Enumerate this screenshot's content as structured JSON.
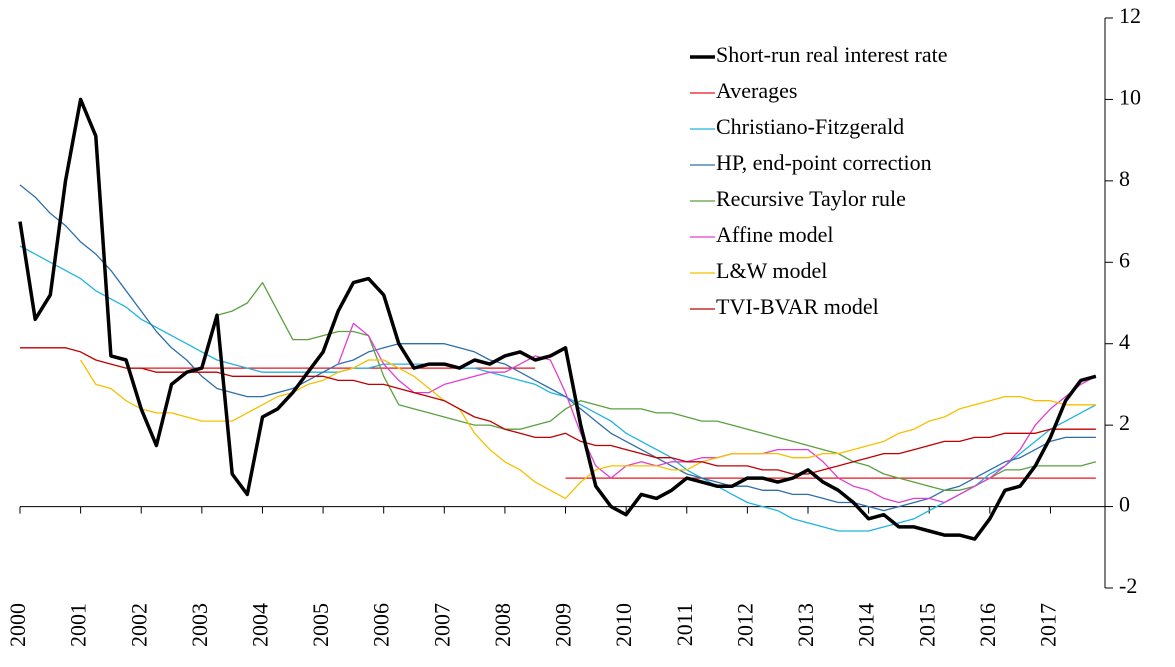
{
  "chart_data": {
    "type": "line",
    "x": [
      2000,
      2000.25,
      2000.5,
      2000.75,
      2001,
      2001.25,
      2001.5,
      2001.75,
      2002,
      2002.25,
      2002.5,
      2002.75,
      2003,
      2003.25,
      2003.5,
      2003.75,
      2004,
      2004.25,
      2004.5,
      2004.75,
      2005,
      2005.25,
      2005.5,
      2005.75,
      2006,
      2006.25,
      2006.5,
      2006.75,
      2007,
      2007.25,
      2007.5,
      2007.75,
      2008,
      2008.25,
      2008.5,
      2008.75,
      2009,
      2009.25,
      2009.5,
      2009.75,
      2010,
      2010.25,
      2010.5,
      2010.75,
      2011,
      2011.25,
      2011.5,
      2011.75,
      2012,
      2012.25,
      2012.5,
      2012.75,
      2013,
      2013.25,
      2013.5,
      2013.75,
      2014,
      2014.25,
      2014.5,
      2014.75,
      2015,
      2015.25,
      2015.5,
      2015.75,
      2016,
      2016.25,
      2016.5,
      2016.75,
      2017,
      2017.25,
      2017.5,
      2017.75
    ],
    "xlim": [
      2000,
      2017.9
    ],
    "xticks": [
      2000,
      2001,
      2002,
      2003,
      2004,
      2005,
      2006,
      2007,
      2008,
      2009,
      2010,
      2011,
      2012,
      2013,
      2014,
      2015,
      2016,
      2017
    ],
    "ylim": [
      -2,
      12
    ],
    "yticks": [
      -2,
      0,
      2,
      4,
      6,
      8,
      10,
      12
    ],
    "legend": "upper right",
    "series": [
      {
        "name": "Short-run real interest rate",
        "color": "#000000",
        "values": [
          7.0,
          4.6,
          5.2,
          8.0,
          10.0,
          9.1,
          3.7,
          3.6,
          2.4,
          1.5,
          3.0,
          3.3,
          3.4,
          4.7,
          0.8,
          0.3,
          2.2,
          2.4,
          2.8,
          3.3,
          3.8,
          4.8,
          5.5,
          5.6,
          5.2,
          4.0,
          3.4,
          3.5,
          3.5,
          3.4,
          3.6,
          3.5,
          3.7,
          3.8,
          3.6,
          3.7,
          3.9,
          2.0,
          0.5,
          0.0,
          -0.2,
          0.3,
          0.2,
          0.4,
          0.7,
          0.6,
          0.5,
          0.5,
          0.7,
          0.7,
          0.6,
          0.7,
          0.9,
          0.6,
          0.4,
          0.1,
          -0.3,
          -0.2,
          -0.5,
          -0.5,
          -0.6,
          -0.7,
          -0.7,
          -0.8,
          -0.3,
          0.4,
          0.5,
          1.0,
          1.7,
          2.6,
          3.1,
          3.2
        ]
      },
      {
        "name": "Averages",
        "color": "#e8141c",
        "values": [
          null,
          null,
          null,
          null,
          null,
          null,
          null,
          3.4,
          3.4,
          3.4,
          3.4,
          3.4,
          3.4,
          3.4,
          3.4,
          3.4,
          3.4,
          3.4,
          3.4,
          3.4,
          3.4,
          3.4,
          3.4,
          3.4,
          3.4,
          3.4,
          3.4,
          3.4,
          3.4,
          3.4,
          3.4,
          3.4,
          3.4,
          3.4,
          3.4,
          null,
          0.7,
          0.7,
          0.7,
          0.7,
          0.7,
          0.7,
          0.7,
          0.7,
          0.7,
          0.7,
          0.7,
          0.7,
          0.7,
          0.7,
          0.7,
          0.7,
          0.7,
          0.7,
          0.7,
          0.7,
          0.7,
          0.7,
          0.7,
          0.7,
          0.7,
          0.7,
          0.7,
          0.7,
          0.7,
          0.7,
          0.7,
          0.7,
          0.7,
          0.7,
          0.7,
          0.7
        ]
      },
      {
        "name": "Christiano-Fitzgerald",
        "color": "#1fb4e0",
        "values": [
          6.4,
          6.2,
          6.0,
          5.8,
          5.6,
          5.3,
          5.1,
          4.9,
          4.6,
          4.4,
          4.2,
          4.0,
          3.8,
          3.6,
          3.5,
          3.4,
          3.3,
          3.3,
          3.3,
          3.3,
          3.3,
          3.3,
          3.4,
          3.4,
          3.5,
          3.5,
          3.5,
          3.5,
          3.5,
          3.4,
          3.4,
          3.3,
          3.2,
          3.1,
          3.0,
          2.8,
          2.7,
          2.5,
          2.3,
          2.1,
          1.8,
          1.6,
          1.4,
          1.2,
          0.9,
          0.7,
          0.5,
          0.3,
          0.1,
          0.0,
          -0.1,
          -0.3,
          -0.4,
          -0.5,
          -0.6,
          -0.6,
          -0.6,
          -0.5,
          -0.4,
          -0.3,
          -0.1,
          0.1,
          0.3,
          0.5,
          0.8,
          1.0,
          1.3,
          1.6,
          1.9,
          2.1,
          2.3,
          2.5
        ]
      },
      {
        "name": "HP, end-point correction",
        "color": "#2e6fa8",
        "values": [
          7.9,
          7.6,
          7.2,
          6.9,
          6.5,
          6.2,
          5.8,
          5.3,
          4.8,
          4.3,
          3.9,
          3.6,
          3.2,
          2.9,
          2.8,
          2.7,
          2.7,
          2.8,
          2.9,
          3.1,
          3.3,
          3.5,
          3.6,
          3.8,
          3.9,
          4.0,
          4.0,
          4.0,
          4.0,
          3.9,
          3.8,
          3.6,
          3.5,
          3.3,
          3.1,
          2.9,
          2.7,
          2.4,
          2.1,
          1.8,
          1.6,
          1.4,
          1.2,
          1.0,
          0.8,
          0.7,
          0.6,
          0.5,
          0.5,
          0.4,
          0.4,
          0.3,
          0.3,
          0.2,
          0.1,
          0.1,
          0.0,
          -0.1,
          0.0,
          0.1,
          0.2,
          0.4,
          0.5,
          0.7,
          0.9,
          1.1,
          1.2,
          1.4,
          1.6,
          1.7,
          1.7,
          1.7
        ]
      },
      {
        "name": "Recursive Taylor rule",
        "color": "#5aa040",
        "values": [
          null,
          null,
          null,
          null,
          null,
          null,
          null,
          null,
          null,
          null,
          null,
          null,
          3.4,
          4.7,
          4.8,
          5.0,
          5.5,
          4.8,
          4.1,
          4.1,
          4.2,
          4.3,
          4.3,
          4.2,
          3.2,
          2.5,
          2.4,
          2.3,
          2.2,
          2.1,
          2.0,
          2.0,
          1.9,
          1.9,
          2.0,
          2.1,
          2.4,
          2.6,
          2.5,
          2.4,
          2.4,
          2.4,
          2.3,
          2.3,
          2.2,
          2.1,
          2.1,
          2.0,
          1.9,
          1.8,
          1.7,
          1.6,
          1.5,
          1.4,
          1.3,
          1.1,
          1.0,
          0.8,
          0.7,
          0.6,
          0.5,
          0.4,
          0.4,
          0.5,
          0.7,
          0.9,
          0.9,
          1.0,
          1.0,
          1.0,
          1.0,
          1.1
        ]
      },
      {
        "name": "Affine model",
        "color": "#e040d0",
        "values": [
          null,
          null,
          null,
          null,
          null,
          null,
          null,
          null,
          null,
          null,
          null,
          null,
          null,
          null,
          null,
          null,
          null,
          null,
          null,
          null,
          null,
          3.5,
          4.5,
          4.2,
          3.5,
          3.1,
          2.8,
          2.8,
          3.0,
          3.1,
          3.2,
          3.3,
          3.3,
          3.5,
          3.7,
          3.6,
          2.8,
          1.8,
          1.0,
          0.7,
          1.0,
          1.1,
          1.0,
          1.1,
          1.1,
          1.2,
          1.2,
          1.3,
          1.3,
          1.3,
          1.4,
          1.4,
          1.4,
          1.1,
          0.7,
          0.5,
          0.4,
          0.2,
          0.1,
          0.2,
          0.2,
          0.1,
          0.3,
          0.5,
          0.7,
          1.0,
          1.4,
          2.0,
          2.4,
          2.7,
          3.0,
          3.2
        ]
      },
      {
        "name": "L&W model",
        "color": "#f5c000",
        "values": [
          null,
          null,
          null,
          null,
          3.6,
          3.0,
          2.9,
          2.6,
          2.4,
          2.3,
          2.3,
          2.2,
          2.1,
          2.1,
          2.1,
          2.3,
          2.5,
          2.7,
          2.8,
          3.0,
          3.1,
          3.3,
          3.4,
          3.6,
          3.6,
          3.4,
          3.2,
          2.9,
          2.6,
          2.4,
          1.8,
          1.4,
          1.1,
          0.9,
          0.6,
          0.4,
          0.2,
          0.6,
          0.9,
          1.0,
          1.0,
          1.0,
          1.0,
          0.9,
          0.9,
          1.1,
          1.2,
          1.3,
          1.3,
          1.3,
          1.3,
          1.2,
          1.2,
          1.3,
          1.3,
          1.4,
          1.5,
          1.6,
          1.8,
          1.9,
          2.1,
          2.2,
          2.4,
          2.5,
          2.6,
          2.7,
          2.7,
          2.6,
          2.6,
          2.5,
          2.5,
          2.5
        ]
      },
      {
        "name": "TVI-BVAR model",
        "color": "#c00000",
        "values": [
          3.9,
          3.9,
          3.9,
          3.9,
          3.8,
          3.6,
          3.5,
          3.4,
          3.4,
          3.3,
          3.3,
          3.3,
          3.3,
          3.3,
          3.2,
          3.2,
          3.2,
          3.2,
          3.2,
          3.2,
          3.2,
          3.1,
          3.1,
          3.0,
          3.0,
          2.9,
          2.8,
          2.7,
          2.6,
          2.4,
          2.2,
          2.1,
          1.9,
          1.8,
          1.7,
          1.7,
          1.8,
          1.6,
          1.5,
          1.5,
          1.4,
          1.3,
          1.2,
          1.2,
          1.1,
          1.1,
          1.0,
          1.0,
          1.0,
          0.9,
          0.9,
          0.8,
          0.8,
          0.9,
          1.0,
          1.1,
          1.2,
          1.3,
          1.3,
          1.4,
          1.5,
          1.6,
          1.6,
          1.7,
          1.7,
          1.8,
          1.8,
          1.8,
          1.9,
          1.9,
          1.9,
          1.9
        ]
      }
    ]
  }
}
